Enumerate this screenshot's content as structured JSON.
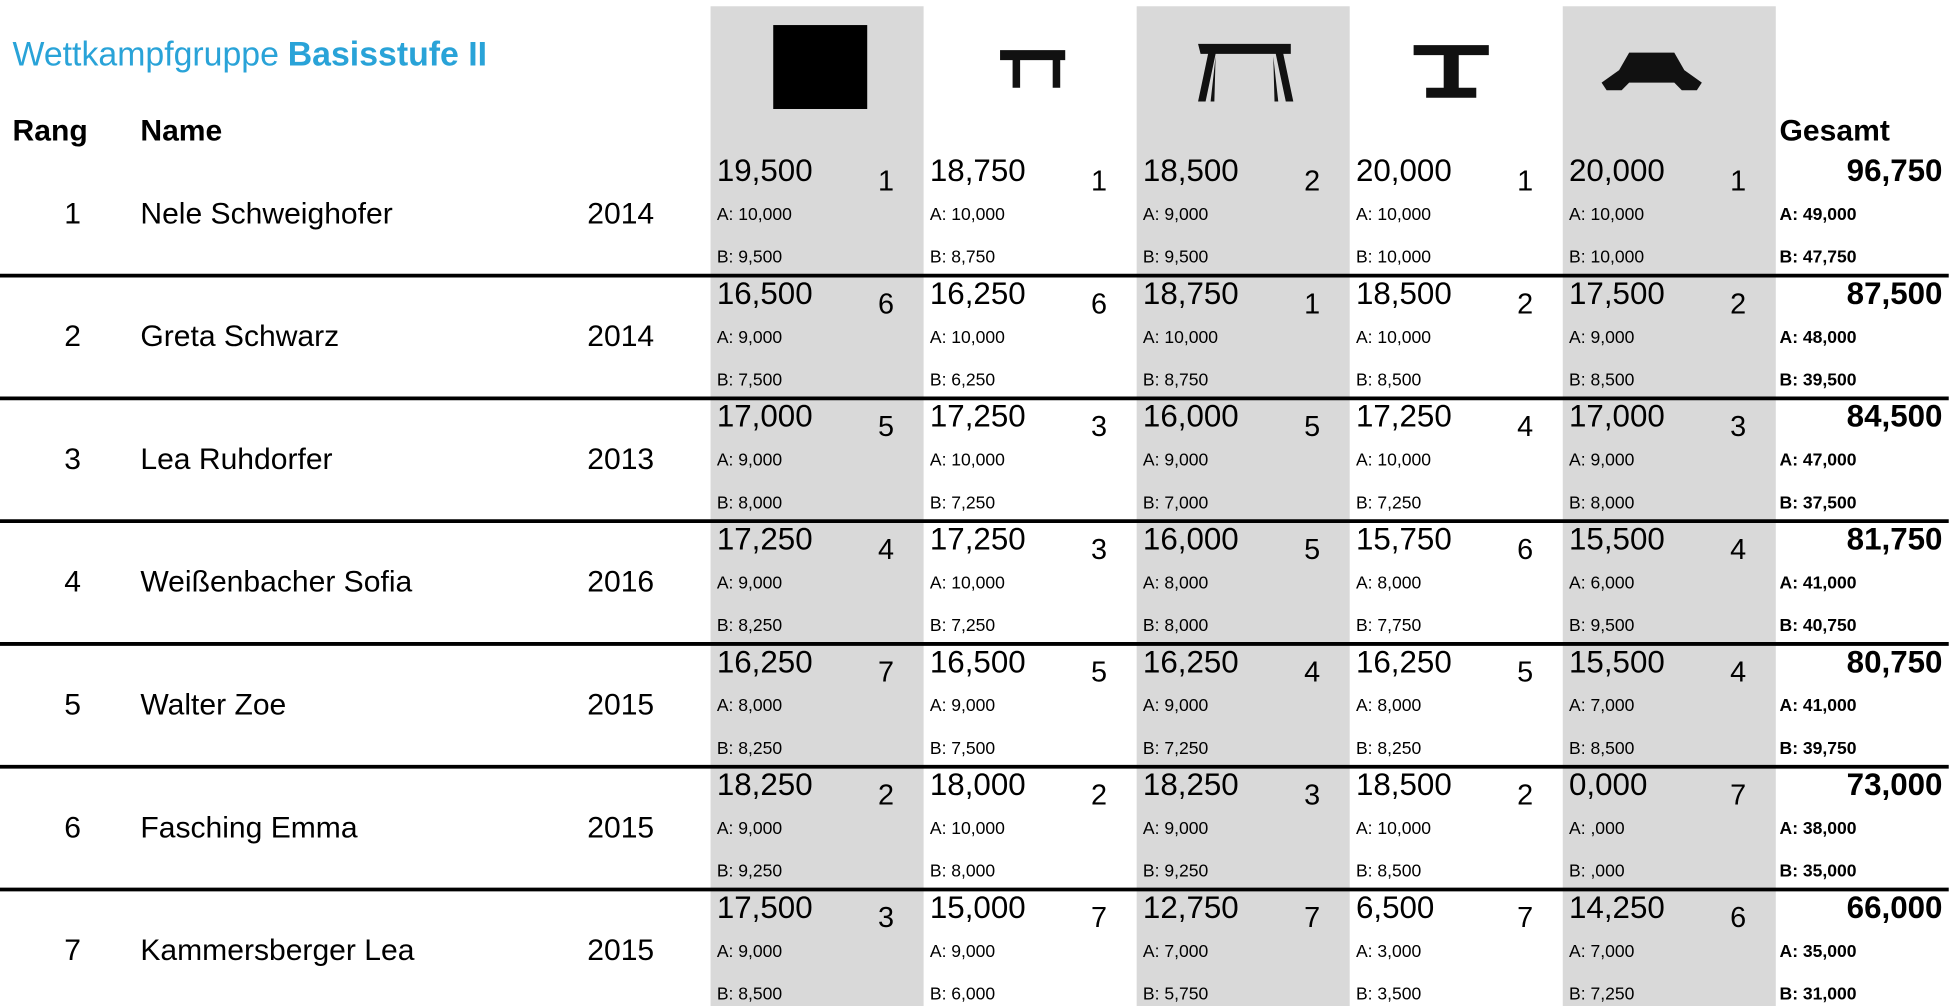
{
  "header": {
    "title": "Wettkampfgruppe",
    "title_bold": "Basisstufe II",
    "rank": "Rang",
    "name": "Name",
    "total": "Gesamt"
  },
  "rows": [
    {
      "rank": "1",
      "name": "Nele Schweighofer",
      "year": "2014",
      "events": [
        [
          "19,500",
          "1",
          "A: 10,000",
          "B: 9,500"
        ],
        [
          "18,750",
          "1",
          "A: 10,000",
          "B: 8,750"
        ],
        [
          "18,500",
          "2",
          "A: 9,000",
          "B: 9,500"
        ],
        [
          "20,000",
          "1",
          "A: 10,000",
          "B: 10,000"
        ],
        [
          "20,000",
          "1",
          "A: 10,000",
          "B: 10,000"
        ]
      ],
      "total": [
        "96,750",
        "A: 49,000",
        "B: 47,750"
      ]
    },
    {
      "rank": "2",
      "name": "Greta Schwarz",
      "year": "2014",
      "events": [
        [
          "16,500",
          "6",
          "A: 9,000",
          "B: 7,500"
        ],
        [
          "16,250",
          "6",
          "A: 10,000",
          "B: 6,250"
        ],
        [
          "18,750",
          "1",
          "A: 10,000",
          "B: 8,750"
        ],
        [
          "18,500",
          "2",
          "A: 10,000",
          "B: 8,500"
        ],
        [
          "17,500",
          "2",
          "A: 9,000",
          "B: 8,500"
        ]
      ],
      "total": [
        "87,500",
        "A: 48,000",
        "B: 39,500"
      ]
    },
    {
      "rank": "3",
      "name": "Lea Ruhdorfer",
      "year": "2013",
      "events": [
        [
          "17,000",
          "5",
          "A: 9,000",
          "B: 8,000"
        ],
        [
          "17,250",
          "3",
          "A: 10,000",
          "B: 7,250"
        ],
        [
          "16,000",
          "5",
          "A: 9,000",
          "B: 7,000"
        ],
        [
          "17,250",
          "4",
          "A: 10,000",
          "B: 7,250"
        ],
        [
          "17,000",
          "3",
          "A: 9,000",
          "B: 8,000"
        ]
      ],
      "total": [
        "84,500",
        "A: 47,000",
        "B: 37,500"
      ]
    },
    {
      "rank": "4",
      "name": "Weißenbacher Sofia",
      "year": "2016",
      "events": [
        [
          "17,250",
          "4",
          "A: 9,000",
          "B: 8,250"
        ],
        [
          "17,250",
          "3",
          "A: 10,000",
          "B: 7,250"
        ],
        [
          "16,000",
          "5",
          "A: 8,000",
          "B: 8,000"
        ],
        [
          "15,750",
          "6",
          "A: 8,000",
          "B: 7,750"
        ],
        [
          "15,500",
          "4",
          "A: 6,000",
          "B: 9,500"
        ]
      ],
      "total": [
        "81,750",
        "A: 41,000",
        "B: 40,750"
      ]
    },
    {
      "rank": "5",
      "name": "Walter Zoe",
      "year": "2015",
      "events": [
        [
          "16,250",
          "7",
          "A: 8,000",
          "B: 8,250"
        ],
        [
          "16,500",
          "5",
          "A: 9,000",
          "B: 7,500"
        ],
        [
          "16,250",
          "4",
          "A: 9,000",
          "B: 7,250"
        ],
        [
          "16,250",
          "5",
          "A: 8,000",
          "B: 8,250"
        ],
        [
          "15,500",
          "4",
          "A: 7,000",
          "B: 8,500"
        ]
      ],
      "total": [
        "80,750",
        "A: 41,000",
        "B: 39,750"
      ]
    },
    {
      "rank": "6",
      "name": "Fasching Emma",
      "year": "2015",
      "events": [
        [
          "18,250",
          "2",
          "A: 9,000",
          "B: 9,250"
        ],
        [
          "18,000",
          "2",
          "A: 10,000",
          "B: 8,000"
        ],
        [
          "18,250",
          "3",
          "A: 9,000",
          "B: 9,250"
        ],
        [
          "18,500",
          "2",
          "A: 10,000",
          "B: 8,500"
        ],
        [
          "0,000",
          "7",
          "A: ,000",
          "B: ,000"
        ]
      ],
      "total": [
        "73,000",
        "A: 38,000",
        "B: 35,000"
      ]
    },
    {
      "rank": "7",
      "name": "Kammersberger Lea",
      "year": "2015",
      "events": [
        [
          "17,500",
          "3",
          "A: 9,000",
          "B: 8,500"
        ],
        [
          "15,000",
          "7",
          "A: 9,000",
          "B: 6,000"
        ],
        [
          "12,750",
          "7",
          "A: 7,000",
          "B: 5,750"
        ],
        [
          "6,500",
          "7",
          "A: 3,000",
          "B: 3,500"
        ],
        [
          "14,250",
          "6",
          "A: 7,000",
          "B: 7,250"
        ]
      ],
      "total": [
        "66,000",
        "A: 35,000",
        "B: 31,000"
      ]
    }
  ]
}
